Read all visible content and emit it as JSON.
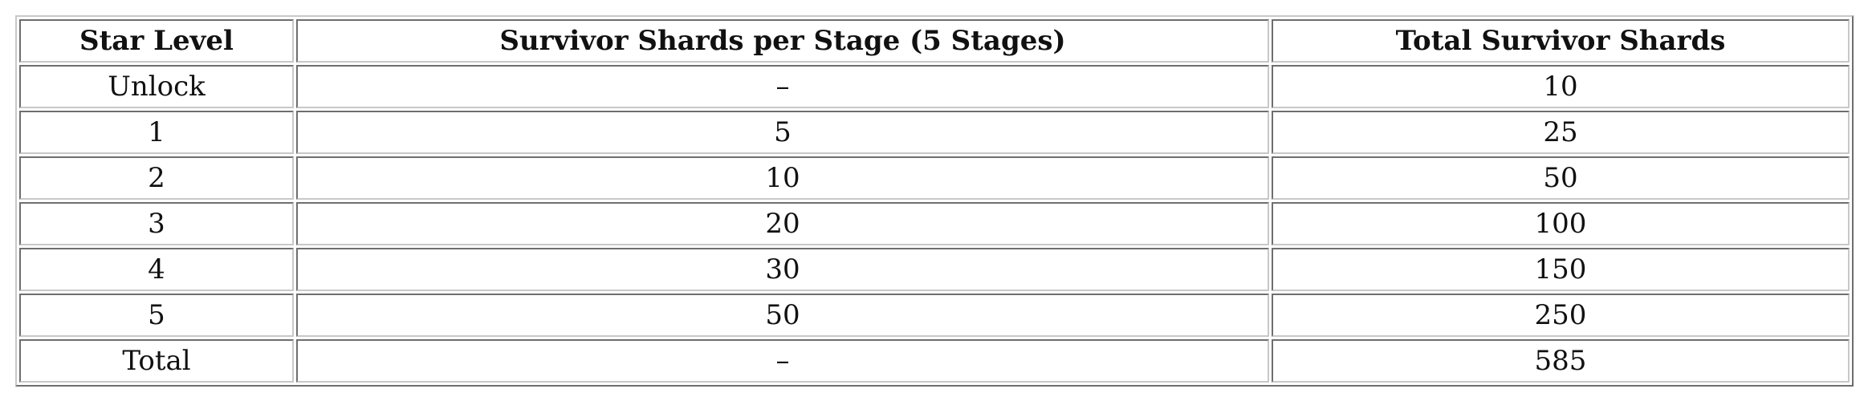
{
  "table": {
    "headers": [
      "Star Level",
      "Survivor Shards per Stage (5 Stages)",
      "Total Survivor Shards"
    ],
    "rows": [
      [
        "Unlock",
        "–",
        "10"
      ],
      [
        "1",
        "5",
        "25"
      ],
      [
        "2",
        "10",
        "50"
      ],
      [
        "3",
        "20",
        "100"
      ],
      [
        "4",
        "30",
        "150"
      ],
      [
        "5",
        "50",
        "250"
      ],
      [
        "Total",
        "–",
        "585"
      ]
    ]
  }
}
